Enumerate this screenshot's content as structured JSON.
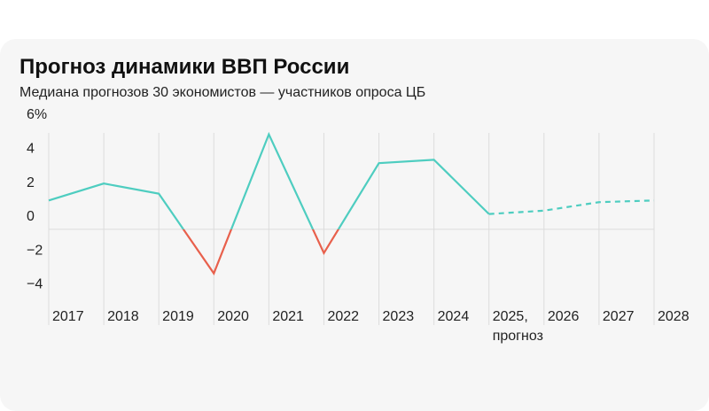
{
  "chart_data": {
    "type": "line",
    "title": "Прогноз динамики ВВП России",
    "subtitle": "Медиана прогнозов 30 экономистов — участников опроса ЦБ",
    "categories": [
      "2017",
      "2018",
      "2019",
      "2020",
      "2021",
      "2022",
      "2023",
      "2024",
      "2025,\nпрогноз",
      "2026",
      "2027",
      "2028"
    ],
    "values": [
      1.7,
      2.7,
      2.1,
      -2.6,
      5.6,
      -1.4,
      3.9,
      4.1,
      0.9,
      1.1,
      1.6,
      1.7
    ],
    "color": "#4ecdc0",
    "negative_color": "#e8604c",
    "dashed_from_index": 8,
    "ylim": [
      -4.5,
      6
    ],
    "yticks": [
      {
        "value": 6,
        "label": "6%"
      },
      4,
      2,
      0,
      {
        "value": -2,
        "label": "−2"
      },
      {
        "value": -4,
        "label": "−4"
      }
    ],
    "grid": true
  }
}
